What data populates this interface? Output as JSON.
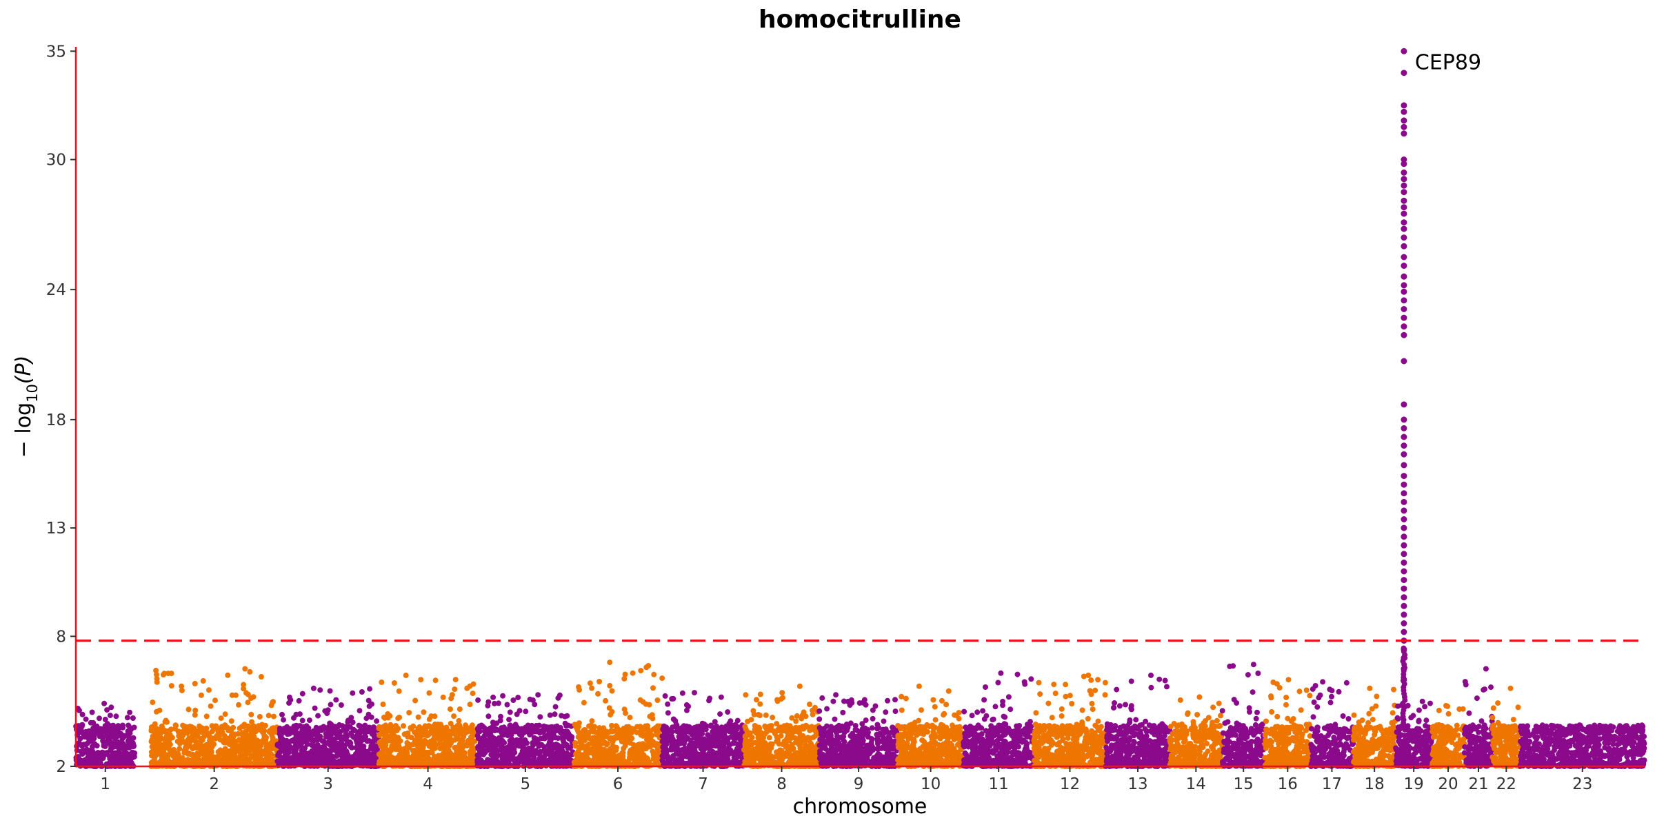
{
  "chart_data": {
    "type": "scatter",
    "subtype": "manhattan",
    "title": "homocitrulline",
    "xlabel": "chromosome",
    "ylabel_parts": {
      "prefix": "− log",
      "sub": "10",
      "suffix": "(P)"
    },
    "ylim": [
      2,
      35.2
    ],
    "yticks": [
      2,
      8,
      13,
      18,
      24,
      30,
      35
    ],
    "y_tick_labels": [
      "2",
      "8",
      "13",
      "18",
      "24",
      "30",
      "35"
    ],
    "threshold": 7.8,
    "chromosomes": [
      {
        "label": "1",
        "start": 0.0,
        "end": 3.6,
        "color": "purple",
        "peak": 4.9
      },
      {
        "label": "2",
        "start": 4.6,
        "end": 12.3,
        "color": "orange",
        "peak": 6.5
      },
      {
        "label": "3",
        "start": 12.3,
        "end": 18.5,
        "color": "purple",
        "peak": 5.6
      },
      {
        "label": "4",
        "start": 18.5,
        "end": 24.5,
        "color": "orange",
        "peak": 6.2
      },
      {
        "label": "5",
        "start": 24.5,
        "end": 30.4,
        "color": "purple",
        "peak": 5.3
      },
      {
        "label": "6",
        "start": 30.4,
        "end": 35.8,
        "color": "orange",
        "peak": 6.8
      },
      {
        "label": "7",
        "start": 35.8,
        "end": 40.8,
        "color": "purple",
        "peak": 5.4
      },
      {
        "label": "8",
        "start": 40.8,
        "end": 45.4,
        "color": "orange",
        "peak": 5.7
      },
      {
        "label": "9",
        "start": 45.4,
        "end": 50.2,
        "color": "purple",
        "peak": 5.3
      },
      {
        "label": "10",
        "start": 50.2,
        "end": 54.2,
        "color": "orange",
        "peak": 5.7
      },
      {
        "label": "11",
        "start": 54.2,
        "end": 58.5,
        "color": "purple",
        "peak": 6.3
      },
      {
        "label": "12",
        "start": 58.5,
        "end": 62.9,
        "color": "orange",
        "peak": 6.2
      },
      {
        "label": "13",
        "start": 62.9,
        "end": 66.8,
        "color": "purple",
        "peak": 6.2
      },
      {
        "label": "14",
        "start": 66.8,
        "end": 70.0,
        "color": "orange",
        "peak": 5.2
      },
      {
        "label": "15",
        "start": 70.0,
        "end": 72.6,
        "color": "purple",
        "peak": 6.7
      },
      {
        "label": "16",
        "start": 72.6,
        "end": 75.4,
        "color": "orange",
        "peak": 6.0
      },
      {
        "label": "17",
        "start": 75.4,
        "end": 78.0,
        "color": "purple",
        "peak": 5.9
      },
      {
        "label": "18",
        "start": 78.0,
        "end": 80.6,
        "color": "orange",
        "peak": 5.6
      },
      {
        "label": "19",
        "start": 80.6,
        "end": 82.8,
        "color": "purple",
        "peak": 5.0
      },
      {
        "label": "20",
        "start": 82.8,
        "end": 84.8,
        "color": "orange",
        "peak": 4.8
      },
      {
        "label": "21",
        "start": 84.8,
        "end": 86.5,
        "color": "purple",
        "peak": 6.5
      },
      {
        "label": "22",
        "start": 86.5,
        "end": 88.2,
        "color": "orange",
        "peak": 5.6
      },
      {
        "label": "23",
        "start": 88.2,
        "end": 95.8,
        "color": "purple",
        "peak": 3.9
      }
    ],
    "top_hit": {
      "label": "CEP89",
      "chromosome": "19",
      "position": 81.1,
      "top_values": [
        35.0,
        34.0,
        32.5,
        32.2,
        31.8,
        31.5,
        31.2,
        30.0,
        29.8,
        29.4,
        29.1,
        28.8,
        28.5,
        28.1,
        27.8,
        27.5,
        27.1,
        26.8,
        26.4,
        26.0,
        25.5,
        25.1,
        24.6,
        24.2,
        23.9,
        23.5,
        23.1,
        22.7,
        22.3,
        21.9,
        20.7,
        18.7,
        18.0,
        17.6,
        17.2,
        16.8,
        16.4,
        15.9,
        15.4,
        15.0,
        14.6,
        14.2,
        13.8,
        13.4,
        13.0,
        12.6,
        12.2,
        11.8,
        11.4,
        11.0,
        10.6,
        10.2,
        9.8,
        9.4,
        9.0,
        8.6,
        8.2,
        7.8,
        7.4,
        7.0,
        6.5,
        6.0
      ]
    },
    "colors": {
      "purple": "#8b0a8b",
      "orange": "#ee7600",
      "axis": "#e8141c",
      "threshold": "#e8141c"
    },
    "grid": false,
    "legend": "none"
  }
}
